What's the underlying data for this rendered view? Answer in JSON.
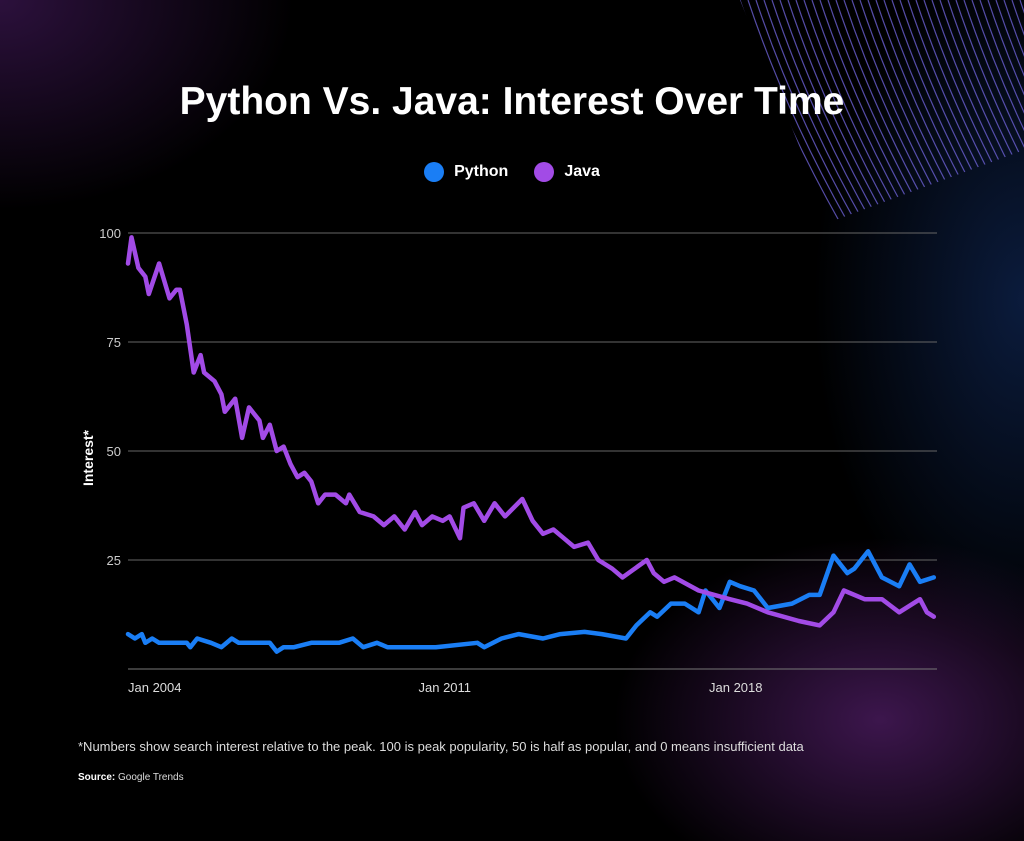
{
  "title": "Python Vs. Java: Interest Over Time",
  "footnote": "*Numbers show search interest relative to the peak. 100 is peak popularity, 50 is half as popular, and 0 means insufficient data",
  "source_label": "Source:",
  "source_value": "Google Trends",
  "chart_data": {
    "type": "line",
    "title": "Python Vs. Java: Interest Over Time",
    "ylabel": "Interest*",
    "xlabel": "",
    "ylim": [
      0,
      100
    ],
    "yticks": [
      "100",
      "75",
      "50",
      "25"
    ],
    "ytick_values": [
      100,
      75,
      50,
      25
    ],
    "xticks": [
      "Jan 2004",
      "Jan 2011",
      "Jan 2018"
    ],
    "xtick_values": [
      "2004-01",
      "2011-01",
      "2018-01"
    ],
    "grid": true,
    "legend": "top-center",
    "series": [
      {
        "name": "Python",
        "color": "#1a7ef5",
        "points": [
          [
            "2004-01",
            8
          ],
          [
            "2004-03",
            7
          ],
          [
            "2004-05",
            8
          ],
          [
            "2004-06",
            6
          ],
          [
            "2004-08",
            7
          ],
          [
            "2004-10",
            6
          ],
          [
            "2005-06",
            6
          ],
          [
            "2005-07",
            5
          ],
          [
            "2005-09",
            7
          ],
          [
            "2006-01",
            6
          ],
          [
            "2006-04",
            5
          ],
          [
            "2006-07",
            7
          ],
          [
            "2006-09",
            6
          ],
          [
            "2007-06",
            6
          ],
          [
            "2007-08",
            4
          ],
          [
            "2007-10",
            5
          ],
          [
            "2008-01",
            5
          ],
          [
            "2008-06",
            6
          ],
          [
            "2009-02",
            6
          ],
          [
            "2009-06",
            7
          ],
          [
            "2009-09",
            5
          ],
          [
            "2010-01",
            6
          ],
          [
            "2010-04",
            5
          ],
          [
            "2010-08",
            5
          ],
          [
            "2011-01",
            5
          ],
          [
            "2011-06",
            5
          ],
          [
            "2012-06",
            6
          ],
          [
            "2012-08",
            5
          ],
          [
            "2013-01",
            7
          ],
          [
            "2013-06",
            8
          ],
          [
            "2014-01",
            7
          ],
          [
            "2014-06",
            8
          ],
          [
            "2015-01",
            8.5
          ],
          [
            "2015-06",
            8
          ],
          [
            "2016-01",
            7
          ],
          [
            "2016-04",
            10
          ],
          [
            "2016-08",
            13
          ],
          [
            "2016-10",
            12
          ],
          [
            "2017-02",
            15
          ],
          [
            "2017-06",
            15
          ],
          [
            "2017-10",
            13
          ],
          [
            "2017-12",
            18
          ],
          [
            "2018-04",
            14
          ],
          [
            "2018-07",
            20
          ],
          [
            "2018-10",
            19
          ],
          [
            "2019-02",
            18
          ],
          [
            "2019-06",
            14
          ],
          [
            "2020-01",
            15
          ],
          [
            "2020-06",
            17
          ],
          [
            "2020-09",
            17
          ],
          [
            "2021-01",
            26
          ],
          [
            "2021-05",
            22
          ],
          [
            "2021-07",
            23
          ],
          [
            "2021-09",
            25
          ],
          [
            "2021-11",
            27
          ],
          [
            "2022-03",
            21
          ],
          [
            "2022-08",
            19
          ],
          [
            "2022-11",
            24
          ],
          [
            "2023-02",
            20
          ],
          [
            "2023-06",
            21
          ]
        ]
      },
      {
        "name": "Java",
        "color": "#a24be6",
        "points": [
          [
            "2004-01",
            93
          ],
          [
            "2004-02",
            99
          ],
          [
            "2004-04",
            92
          ],
          [
            "2004-06",
            90
          ],
          [
            "2004-07",
            86
          ],
          [
            "2004-10",
            93
          ],
          [
            "2005-01",
            85
          ],
          [
            "2005-03",
            87
          ],
          [
            "2005-04",
            87
          ],
          [
            "2005-06",
            79
          ],
          [
            "2005-08",
            68
          ],
          [
            "2005-10",
            72
          ],
          [
            "2005-11",
            68
          ],
          [
            "2006-02",
            66
          ],
          [
            "2006-04",
            63
          ],
          [
            "2006-05",
            59
          ],
          [
            "2006-08",
            62
          ],
          [
            "2006-10",
            53
          ],
          [
            "2006-12",
            60
          ],
          [
            "2007-03",
            57
          ],
          [
            "2007-04",
            53
          ],
          [
            "2007-06",
            56
          ],
          [
            "2007-08",
            50
          ],
          [
            "2007-10",
            51
          ],
          [
            "2007-12",
            47
          ],
          [
            "2008-02",
            44
          ],
          [
            "2008-04",
            45
          ],
          [
            "2008-06",
            43
          ],
          [
            "2008-08",
            38
          ],
          [
            "2008-10",
            40
          ],
          [
            "2009-01",
            40
          ],
          [
            "2009-04",
            38
          ],
          [
            "2009-05",
            40
          ],
          [
            "2009-08",
            36
          ],
          [
            "2009-12",
            35
          ],
          [
            "2010-03",
            33
          ],
          [
            "2010-06",
            35
          ],
          [
            "2010-09",
            32
          ],
          [
            "2010-12",
            36
          ],
          [
            "2011-02",
            33
          ],
          [
            "2011-05",
            35
          ],
          [
            "2011-08",
            34
          ],
          [
            "2011-10",
            35
          ],
          [
            "2012-01",
            30
          ],
          [
            "2012-02",
            37
          ],
          [
            "2012-05",
            38
          ],
          [
            "2012-08",
            34
          ],
          [
            "2012-11",
            38
          ],
          [
            "2013-02",
            35
          ],
          [
            "2013-07",
            39
          ],
          [
            "2013-10",
            34
          ],
          [
            "2014-01",
            31
          ],
          [
            "2014-04",
            32
          ],
          [
            "2014-07",
            30
          ],
          [
            "2014-10",
            28
          ],
          [
            "2015-02",
            29
          ],
          [
            "2015-05",
            25
          ],
          [
            "2015-09",
            23
          ],
          [
            "2015-12",
            21
          ],
          [
            "2016-07",
            25
          ],
          [
            "2016-09",
            22
          ],
          [
            "2016-12",
            20
          ],
          [
            "2017-03",
            21
          ],
          [
            "2017-10",
            18
          ],
          [
            "2018-07",
            16
          ],
          [
            "2018-12",
            15
          ],
          [
            "2019-06",
            13
          ],
          [
            "2020-03",
            11
          ],
          [
            "2020-09",
            10
          ],
          [
            "2021-01",
            13
          ],
          [
            "2021-04",
            18
          ],
          [
            "2021-10",
            16
          ],
          [
            "2022-03",
            16
          ],
          [
            "2022-08",
            13
          ],
          [
            "2023-02",
            16
          ],
          [
            "2023-04",
            13
          ],
          [
            "2023-06",
            12
          ]
        ]
      }
    ]
  }
}
